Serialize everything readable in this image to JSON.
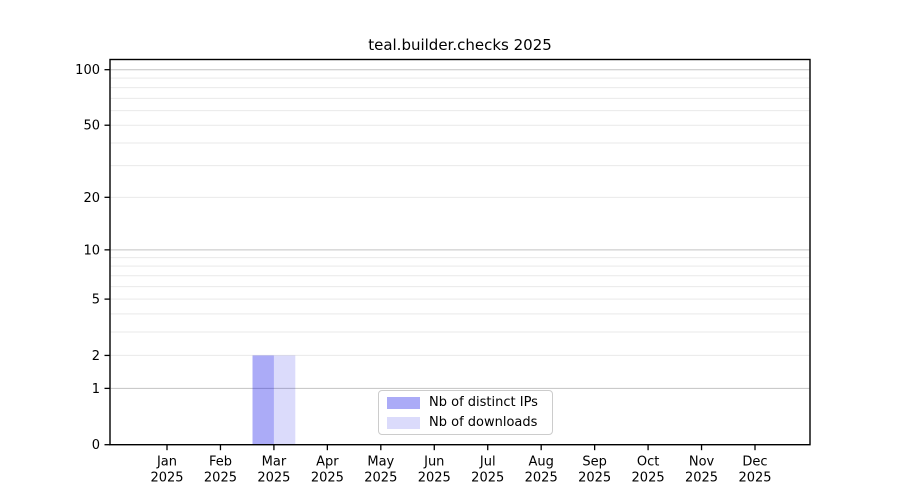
{
  "chart_data": {
    "type": "bar",
    "title": "teal.builder.checks 2025",
    "categories": [
      "Jan",
      "Feb",
      "Mar",
      "Apr",
      "May",
      "Jun",
      "Jul",
      "Aug",
      "Sep",
      "Oct",
      "Nov",
      "Dec"
    ],
    "category_year": "2025",
    "series": [
      {
        "name": "Nb of distinct IPs",
        "color": "rgba(0,0,230,0.33)",
        "values": [
          0,
          0,
          2,
          0,
          0,
          0,
          0,
          0,
          0,
          0,
          0,
          0
        ]
      },
      {
        "name": "Nb of downloads",
        "color": "rgba(0,0,230,0.14)",
        "values": [
          0,
          0,
          2,
          0,
          0,
          0,
          0,
          0,
          0,
          0,
          0,
          0
        ]
      }
    ],
    "y_scale": "log1p",
    "ylim": [
      0,
      113.5
    ],
    "y_major_ticks": [
      0,
      1,
      2,
      5,
      10,
      20,
      50,
      100
    ],
    "y_minor_gridlines": [
      3,
      4,
      6,
      7,
      8,
      9,
      30,
      40,
      60,
      70,
      80,
      90
    ],
    "decade_gridlines": [
      1,
      10,
      100
    ],
    "grid": true,
    "legend_position": "lower center"
  },
  "colors": {
    "axis": "#000000",
    "tick_label": "#000000",
    "grid_decade": "#c3c3c3",
    "grid_minor": "#e9e9e9",
    "background": "#ffffff",
    "legend_border": "#cccccc"
  }
}
